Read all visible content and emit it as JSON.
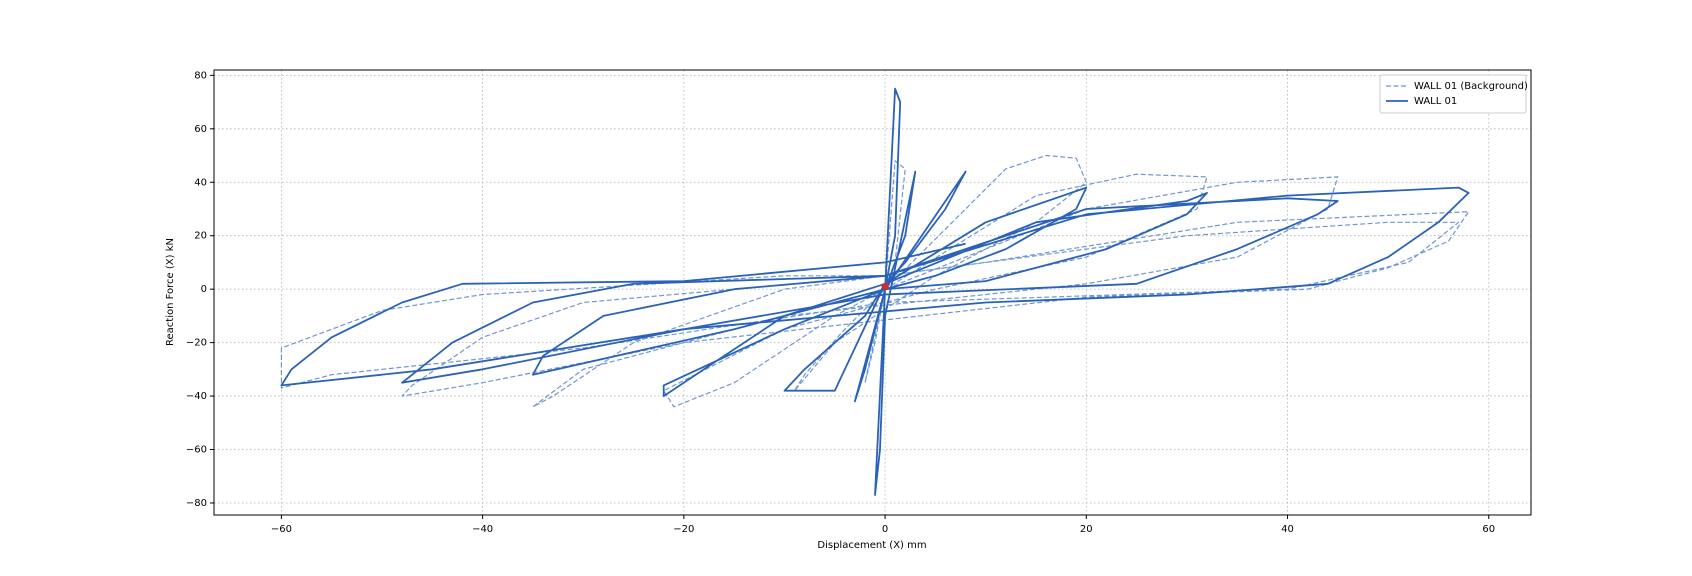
{
  "chart_data": {
    "type": "line",
    "xlabel": "Displacement (X) mm",
    "ylabel": "Reaction Force (X) kN",
    "xlim": [
      -66.7,
      64.2
    ],
    "ylim": [
      -84.5,
      82
    ],
    "xticks": [
      {
        "value": -60,
        "label": "−60"
      },
      {
        "value": -40,
        "label": "−40"
      },
      {
        "value": -20,
        "label": "−20"
      },
      0,
      20,
      40,
      60
    ],
    "yticks": [
      {
        "value": -80,
        "label": "−80"
      },
      {
        "value": -60,
        "label": "−60"
      },
      {
        "value": -40,
        "label": "−40"
      },
      {
        "value": -20,
        "label": "−20"
      },
      0,
      20,
      40,
      60,
      80
    ],
    "grid": true,
    "legend": "upper right",
    "series": [
      {
        "name": "WALL 01 (Background)",
        "color": "#6f96d2",
        "dashed": true,
        "x": [
          0,
          1,
          2,
          1,
          0,
          -2,
          -1,
          0,
          12,
          16,
          19,
          20,
          15,
          5,
          -5,
          -9,
          -8,
          -4,
          0,
          15,
          25,
          32,
          31,
          20,
          5,
          -10,
          -22,
          -21,
          -15,
          -5,
          0,
          20,
          35,
          45,
          44,
          35,
          20,
          -10,
          -30,
          -35,
          -33,
          -25,
          -10,
          10,
          35,
          58,
          56,
          50,
          42,
          20,
          -20,
          -40,
          -48,
          -47,
          -40,
          -30,
          0,
          30,
          50,
          57,
          52,
          40,
          0,
          -30,
          -55,
          -60,
          -60,
          -50,
          -40,
          -10,
          0
        ],
        "values": [
          0,
          48,
          45,
          10,
          0,
          -35,
          -20,
          0,
          45,
          50,
          49,
          40,
          25,
          5,
          -20,
          -38,
          -32,
          -15,
          0,
          35,
          43,
          42,
          30,
          12,
          0,
          -15,
          -38,
          -44,
          -35,
          -10,
          0,
          30,
          40,
          42,
          30,
          12,
          2,
          -10,
          -30,
          -44,
          -40,
          -20,
          0,
          10,
          25,
          29,
          18,
          8,
          0,
          -3,
          -20,
          -35,
          -40,
          -36,
          -18,
          -5,
          5,
          20,
          25,
          25,
          10,
          0,
          -5,
          -22,
          -32,
          -37,
          -22,
          -8,
          -2,
          5,
          5
        ]
      },
      {
        "name": "WALL 01",
        "color": "#2a62b8",
        "dashed": false,
        "x": [
          0,
          1,
          1.5,
          1,
          0,
          -1,
          -0.5,
          0,
          3,
          2,
          0,
          -3,
          -2,
          0,
          8,
          6,
          2,
          0,
          -5,
          -10,
          -8,
          -2,
          0,
          10,
          20,
          19,
          12,
          5,
          0,
          -10,
          -22,
          -22,
          -18,
          -10,
          0,
          15,
          30,
          32,
          30,
          22,
          10,
          0,
          -15,
          -35,
          -34,
          -28,
          -15,
          0,
          20,
          40,
          45,
          43,
          35,
          25,
          0,
          -20,
          -40,
          -48,
          -47,
          -43,
          -35,
          -25,
          0,
          20,
          40,
          57,
          58,
          55,
          50,
          44,
          30,
          10,
          -20,
          -45,
          -60,
          -59,
          -55,
          -48,
          -42,
          -20,
          0,
          8
        ],
        "values": [
          0,
          75,
          70,
          20,
          0,
          -77,
          -60,
          -10,
          44,
          20,
          0,
          -42,
          -30,
          0,
          44,
          30,
          10,
          2,
          -38,
          -38,
          -30,
          -10,
          2,
          25,
          38,
          30,
          15,
          5,
          0,
          -15,
          -36,
          -40,
          -30,
          -10,
          2,
          25,
          33,
          36,
          28,
          15,
          3,
          0,
          -15,
          -32,
          -25,
          -10,
          0,
          5,
          30,
          34,
          33,
          28,
          15,
          2,
          -2,
          -15,
          -30,
          -35,
          -32,
          -20,
          -5,
          2,
          5,
          28,
          35,
          38,
          36,
          25,
          12,
          2,
          -2,
          -5,
          -15,
          -30,
          -36,
          -30,
          -18,
          -5,
          2,
          3,
          10,
          17
        ]
      }
    ],
    "marker": {
      "x": 0,
      "y": 1,
      "color": "#d62728"
    }
  }
}
